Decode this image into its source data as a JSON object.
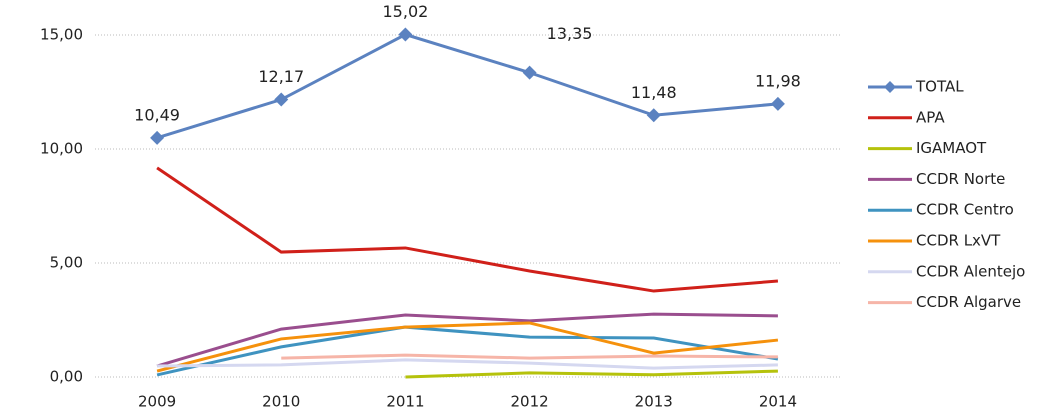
{
  "chart_data": {
    "type": "line",
    "categories": [
      "2009",
      "2010",
      "2011",
      "2012",
      "2013",
      "2014"
    ],
    "series": [
      {
        "name": "TOTAL",
        "color": "#5b82c0",
        "values": [
          10.49,
          12.17,
          15.02,
          13.35,
          11.48,
          11.98
        ],
        "value_labels": [
          "10,49",
          "12,17",
          "15,02",
          "13,35",
          "11,48",
          "11,98"
        ],
        "marker": "diamond"
      },
      {
        "name": "APA",
        "color": "#d0201a",
        "values": [
          9.17,
          5.48,
          5.66,
          4.65,
          3.77,
          4.21
        ]
      },
      {
        "name": "IGAMAOT",
        "color": "#b5c20c",
        "values": [
          null,
          null,
          0,
          0.18,
          0.1,
          0.26
        ]
      },
      {
        "name": "CCDR Norte",
        "color": "#9a4e8e",
        "values": [
          0.48,
          2.1,
          2.72,
          2.46,
          2.76,
          2.68
        ]
      },
      {
        "name": "CCDR Centro",
        "color": "#3f93c0",
        "values": [
          0.09,
          1.32,
          2.19,
          1.75,
          1.71,
          0.79
        ]
      },
      {
        "name": "CCDR LxVT",
        "color": "#f5910c",
        "values": [
          0.26,
          1.67,
          2.19,
          2.37,
          1.05,
          1.62
        ]
      },
      {
        "name": "CCDR Alentejo",
        "color": "#d5d8f0",
        "values": [
          0.48,
          0.53,
          0.75,
          0.61,
          0.39,
          0.53
        ]
      },
      {
        "name": "CCDR Algarve",
        "color": "#f6b5a8",
        "values": [
          null,
          0.83,
          0.96,
          0.83,
          0.92,
          0.88
        ]
      }
    ],
    "ylim": [
      0,
      15
    ],
    "yticks": [
      {
        "value": 0,
        "label": "0,00"
      },
      {
        "value": 5,
        "label": "5,00"
      },
      {
        "value": 10,
        "label": "10,00"
      },
      {
        "value": 15,
        "label": "15,00"
      }
    ],
    "grid": true,
    "legend": "right"
  }
}
